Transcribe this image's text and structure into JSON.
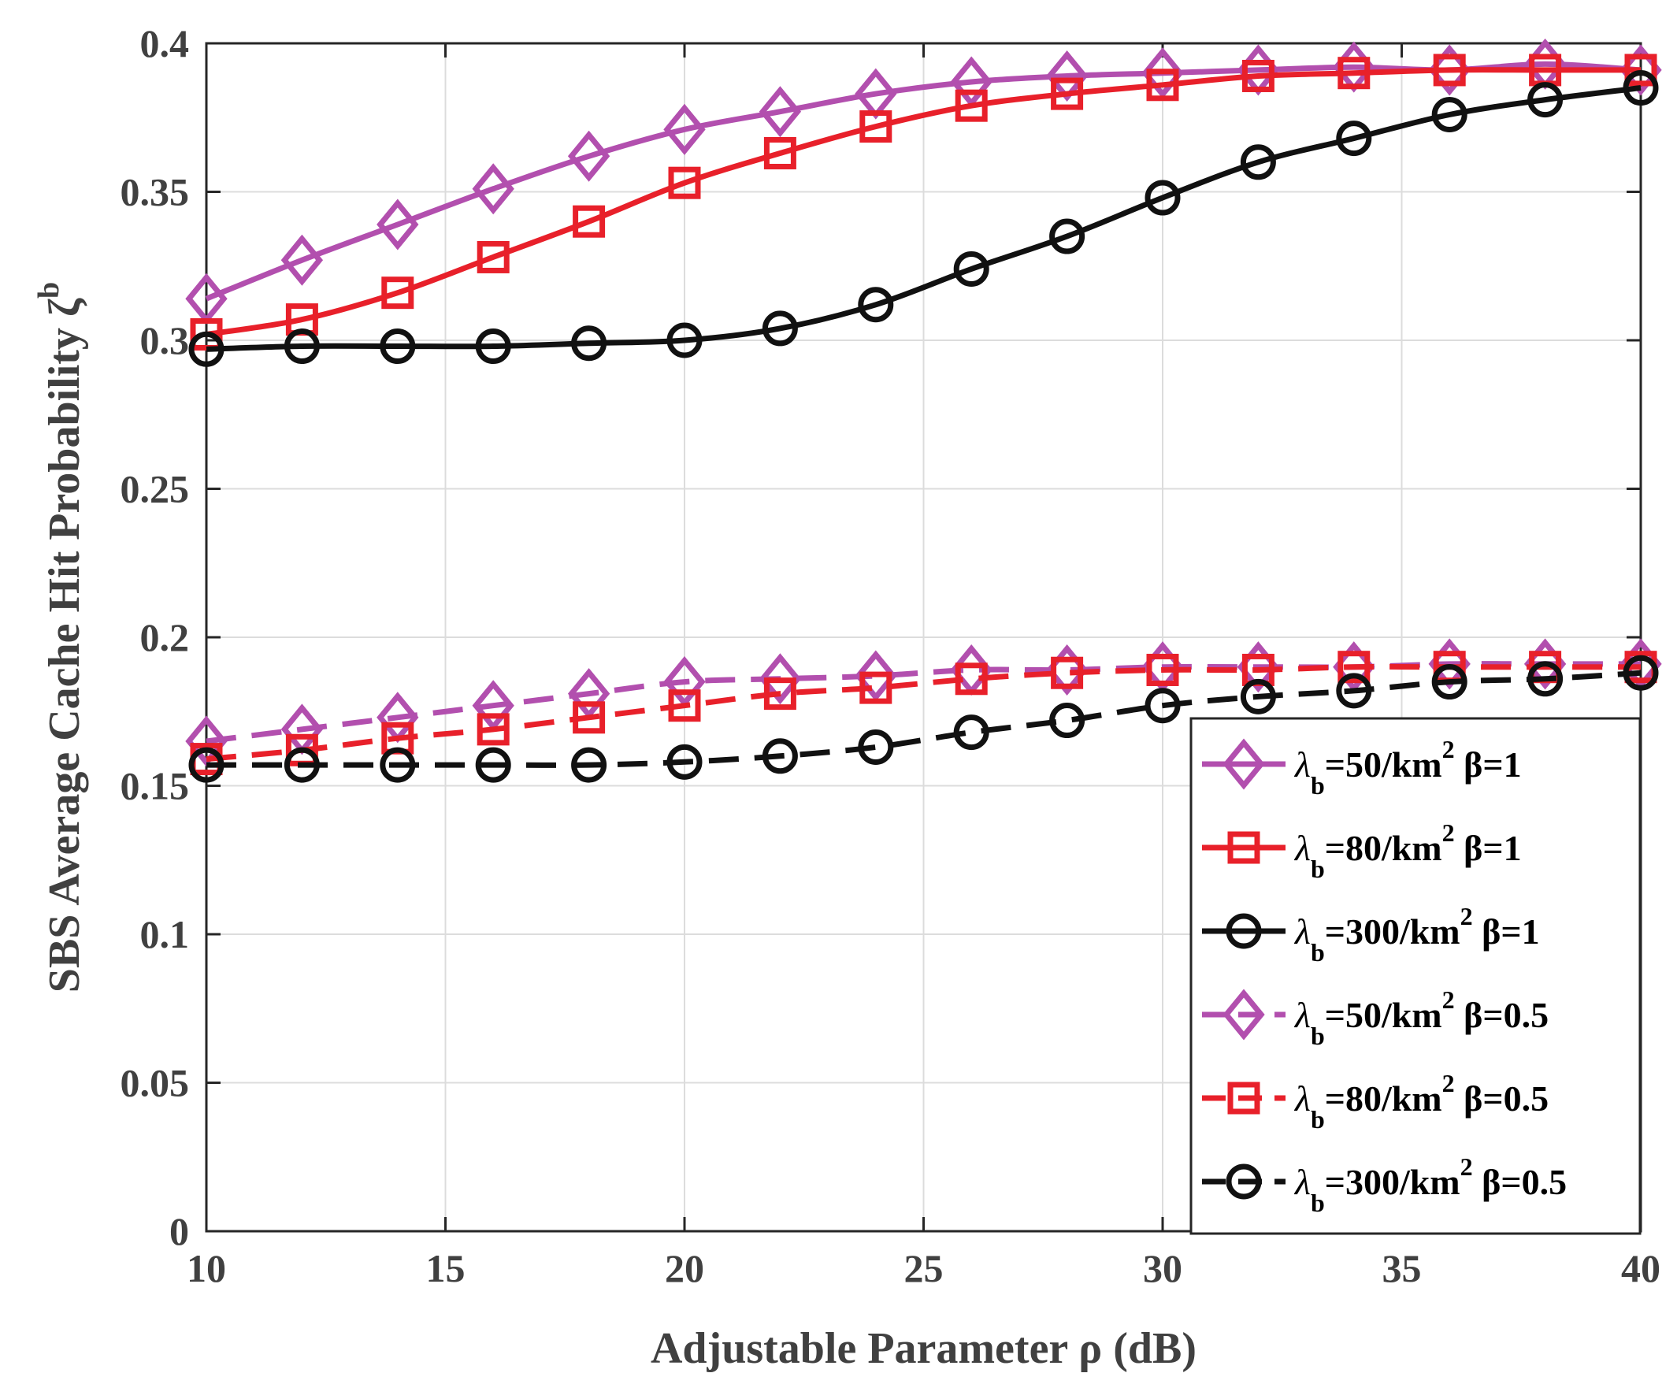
{
  "chart_data": {
    "type": "line",
    "xlabel": "Adjustable Parameter ρ (dB)",
    "ylabel": "SBS Average Cache Hit Probability ζ",
    "ylabel_sup": "b",
    "xlim": [
      10,
      40
    ],
    "ylim": [
      0,
      0.4
    ],
    "xticks": [
      10,
      15,
      20,
      25,
      30,
      35,
      40
    ],
    "yticks": [
      0,
      0.05,
      0.1,
      0.15,
      0.2,
      0.25,
      0.3,
      0.35,
      0.4
    ],
    "ytick_labels": [
      "0",
      "0.05",
      "0.1",
      "0.15",
      "0.2",
      "0.25",
      "0.3",
      "0.35",
      "0.4"
    ],
    "grid": true,
    "legend_position": "bottom-right",
    "x": [
      10,
      12,
      14,
      16,
      18,
      20,
      22,
      24,
      26,
      28,
      30,
      32,
      34,
      36,
      38,
      40
    ],
    "series": [
      {
        "legend": {
          "lam": "λ",
          "sub": "b",
          "density": "=50/km",
          "sup": "2",
          "beta": " β=1"
        },
        "color": "#b24fae",
        "marker": "diamond",
        "dash": "solid",
        "values": [
          0.314,
          0.327,
          0.339,
          0.351,
          0.362,
          0.371,
          0.377,
          0.383,
          0.387,
          0.389,
          0.39,
          0.391,
          0.392,
          0.391,
          0.393,
          0.391
        ]
      },
      {
        "legend": {
          "lam": "λ",
          "sub": "b",
          "density": "=80/km",
          "sup": "2",
          "beta": " β=1"
        },
        "color": "#e8202a",
        "marker": "square",
        "dash": "solid",
        "values": [
          0.302,
          0.307,
          0.316,
          0.328,
          0.34,
          0.353,
          0.363,
          0.372,
          0.379,
          0.383,
          0.386,
          0.389,
          0.39,
          0.391,
          0.391,
          0.391
        ]
      },
      {
        "legend": {
          "lam": "λ",
          "sub": "b",
          "density": "=300/km",
          "sup": "2",
          "beta": " β=1"
        },
        "color": "#111111",
        "marker": "circle",
        "dash": "solid",
        "values": [
          0.297,
          0.298,
          0.298,
          0.298,
          0.299,
          0.3,
          0.304,
          0.312,
          0.324,
          0.335,
          0.348,
          0.36,
          0.368,
          0.376,
          0.381,
          0.385
        ]
      },
      {
        "legend": {
          "lam": "λ",
          "sub": "b",
          "density": "=50/km",
          "sup": "2",
          "beta": " β=0.5"
        },
        "color": "#b24fae",
        "marker": "diamond",
        "dash": "dashed",
        "values": [
          0.165,
          0.169,
          0.173,
          0.177,
          0.181,
          0.185,
          0.186,
          0.187,
          0.189,
          0.189,
          0.19,
          0.19,
          0.19,
          0.191,
          0.191,
          0.191
        ]
      },
      {
        "legend": {
          "lam": "λ",
          "sub": "b",
          "density": "=80/km",
          "sup": "2",
          "beta": " β=0.5"
        },
        "color": "#e8202a",
        "marker": "square",
        "dash": "dashed",
        "values": [
          0.159,
          0.162,
          0.166,
          0.169,
          0.173,
          0.177,
          0.181,
          0.183,
          0.186,
          0.188,
          0.189,
          0.189,
          0.19,
          0.19,
          0.19,
          0.19
        ]
      },
      {
        "legend": {
          "lam": "λ",
          "sub": "b",
          "density": "=300/km",
          "sup": "2",
          "beta": " β=0.5"
        },
        "color": "#111111",
        "marker": "circle",
        "dash": "dashed",
        "values": [
          0.157,
          0.157,
          0.157,
          0.157,
          0.157,
          0.158,
          0.16,
          0.163,
          0.168,
          0.172,
          0.177,
          0.18,
          0.182,
          0.185,
          0.186,
          0.188
        ]
      }
    ]
  }
}
